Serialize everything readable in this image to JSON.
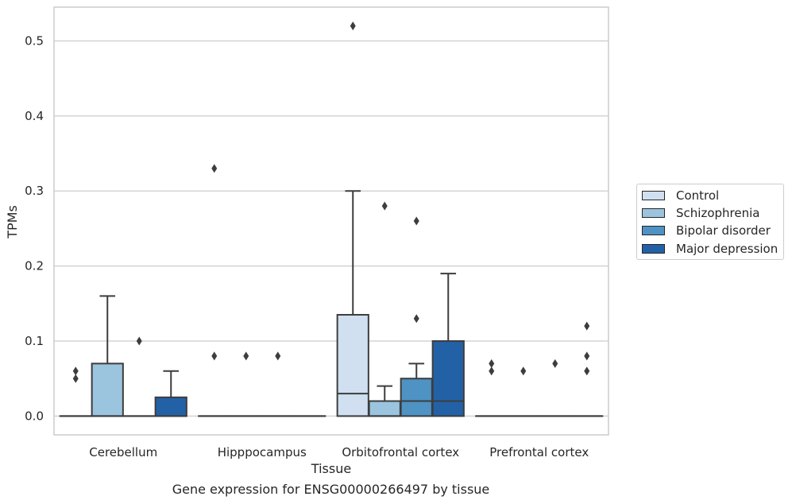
{
  "caption": "Gene expression for ENSG00000266497 by tissue",
  "colors": {
    "Control": "#d0e0f1",
    "Schizophrenia": "#9bc4df",
    "Bipolar disorder": "#4f92c4",
    "Major depression": "#2361a7",
    "grid": "#cccccc",
    "stroke": "#3d3d3d"
  },
  "chart_data": {
    "type": "box",
    "title": "",
    "xlabel": "Tissue",
    "ylabel": "TPMs",
    "ylim": [
      -0.025,
      0.545
    ],
    "yticks": [
      0.0,
      0.1,
      0.2,
      0.3,
      0.4,
      0.5
    ],
    "ytick_labels": [
      "0.0",
      "0.1",
      "0.2",
      "0.3",
      "0.4",
      "0.5"
    ],
    "grid": true,
    "legend_position": "right",
    "categories": [
      "Cerebellum",
      "Hipppocampus",
      "Orbitofrontal cortex",
      "Prefrontal cortex"
    ],
    "series": [
      {
        "name": "Control",
        "boxes": [
          {
            "q1": 0,
            "median": 0,
            "q3": 0,
            "whisker_low": 0,
            "whisker_high": 0,
            "outliers": [
              0.05,
              0.06
            ]
          },
          {
            "q1": 0,
            "median": 0,
            "q3": 0,
            "whisker_low": 0,
            "whisker_high": 0,
            "outliers": [
              0.33,
              0.08
            ]
          },
          {
            "q1": 0,
            "median": 0.03,
            "q3": 0.135,
            "whisker_low": 0,
            "whisker_high": 0.3,
            "outliers": [
              0.52
            ]
          },
          {
            "q1": 0,
            "median": 0,
            "q3": 0,
            "whisker_low": 0,
            "whisker_high": 0,
            "outliers": [
              0.06,
              0.07
            ]
          }
        ]
      },
      {
        "name": "Schizophrenia",
        "boxes": [
          {
            "q1": 0,
            "median": 0,
            "q3": 0.07,
            "whisker_low": 0,
            "whisker_high": 0.16,
            "outliers": []
          },
          {
            "q1": 0,
            "median": 0,
            "q3": 0,
            "whisker_low": 0,
            "whisker_high": 0,
            "outliers": [
              0.08
            ]
          },
          {
            "q1": 0,
            "median": 0,
            "q3": 0.02,
            "whisker_low": 0,
            "whisker_high": 0.04,
            "outliers": [
              0.28
            ]
          },
          {
            "q1": 0,
            "median": 0,
            "q3": 0,
            "whisker_low": 0,
            "whisker_high": 0,
            "outliers": [
              0.06
            ]
          }
        ]
      },
      {
        "name": "Bipolar disorder",
        "boxes": [
          {
            "q1": 0,
            "median": 0,
            "q3": 0,
            "whisker_low": 0,
            "whisker_high": 0,
            "outliers": [
              0.1
            ]
          },
          {
            "q1": 0,
            "median": 0,
            "q3": 0,
            "whisker_low": 0,
            "whisker_high": 0,
            "outliers": [
              0.08
            ]
          },
          {
            "q1": 0,
            "median": 0.02,
            "q3": 0.05,
            "whisker_low": 0,
            "whisker_high": 0.07,
            "outliers": [
              0.13,
              0.26
            ]
          },
          {
            "q1": 0,
            "median": 0,
            "q3": 0,
            "whisker_low": 0,
            "whisker_high": 0,
            "outliers": [
              0.07
            ]
          }
        ]
      },
      {
        "name": "Major depression",
        "boxes": [
          {
            "q1": 0,
            "median": 0,
            "q3": 0.025,
            "whisker_low": 0,
            "whisker_high": 0.06,
            "outliers": []
          },
          {
            "q1": 0,
            "median": 0,
            "q3": 0,
            "whisker_low": 0,
            "whisker_high": 0,
            "outliers": []
          },
          {
            "q1": 0,
            "median": 0.02,
            "q3": 0.1,
            "whisker_low": 0,
            "whisker_high": 0.19,
            "outliers": []
          },
          {
            "q1": 0,
            "median": 0,
            "q3": 0,
            "whisker_low": 0,
            "whisker_high": 0,
            "outliers": [
              0.06,
              0.08,
              0.12
            ]
          }
        ]
      }
    ]
  }
}
